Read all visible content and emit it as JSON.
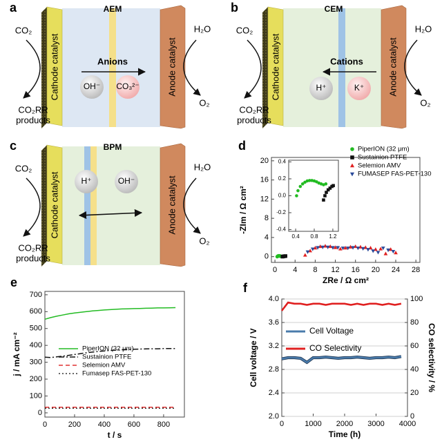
{
  "panels": [
    {
      "label": "a",
      "membrane": "AEM",
      "cathode": "Cathode catalyst",
      "anode": "Anode catalyst",
      "reactant_left": "CO₂",
      "product_left": [
        "CO₂RR",
        "products"
      ],
      "reactant_right": "H₂O",
      "product_right": "O₂",
      "transport": "Anions",
      "ions": [
        "OH⁻",
        "CO₃²⁻"
      ]
    },
    {
      "label": "b",
      "membrane": "CEM",
      "cathode": "Cathode catalyst",
      "anode": "Anode catalyst",
      "reactant_left": "CO₂",
      "product_left": [
        "CO₂RR",
        "products"
      ],
      "reactant_right": "H₂O",
      "product_right": "O₂",
      "transport": "Cations",
      "ions": [
        "H⁺",
        "K⁺"
      ]
    },
    {
      "label": "c",
      "membrane": "BPM",
      "cathode": "Cathode catalyst",
      "anode": "Anode catalyst",
      "reactant_left": "CO₂",
      "product_left": [
        "CO₂RR",
        "products"
      ],
      "reactant_right": "H₂O",
      "product_right": "O₂",
      "ions": [
        "H⁺",
        "OH⁻"
      ]
    }
  ],
  "chart_data": [
    {
      "type": "scatter",
      "panel": "d",
      "xlabel": "ZRe / Ω cm²",
      "ylabel": "-ZIm / Ω cm²",
      "xlim": [
        -0.7,
        28.8
      ],
      "ylim": [
        -1.2,
        20.7
      ],
      "xticks": [
        0,
        4,
        8,
        12,
        16,
        20,
        24,
        28
      ],
      "yticks": [
        0,
        4,
        8,
        12,
        16,
        20
      ],
      "legend": "upper right",
      "series": [
        {
          "name": "PiperION (32 μm)",
          "color": "#22bb22",
          "marker": "circle",
          "x": [
            0.45,
            0.55,
            0.65,
            0.75,
            0.85,
            0.95,
            1.05,
            1.1
          ],
          "values": [
            0,
            0.1,
            0.15,
            0.18,
            0.17,
            0.15,
            0.12,
            0.1
          ]
        },
        {
          "name": "Sustainion PTFE",
          "color": "#111111",
          "marker": "square",
          "x": [
            1.5,
            1.65,
            1.8,
            1.95,
            2.1
          ],
          "values": [
            0,
            0.05,
            0.08,
            0.1,
            0.12
          ]
        },
        {
          "name": "Selemion AMV",
          "color": "#e02020",
          "marker": "triangle-up",
          "x": [
            6,
            7,
            8,
            9,
            10,
            11,
            12,
            13,
            14,
            15,
            16,
            17,
            18,
            19,
            20,
            21,
            22,
            23,
            24
          ],
          "values": [
            0.3,
            1.2,
            1.8,
            2.1,
            2.2,
            2.1,
            1.9,
            1.6,
            1.8,
            2.0,
            2.1,
            2.0,
            1.9,
            1.8,
            1.5,
            1.6,
            0.6,
            1.5,
            0.8
          ]
        },
        {
          "name": "FUMASEP FAS-PET-130",
          "color": "#2a4a9a",
          "marker": "triangle-down",
          "x": [
            6.5,
            7.5,
            8.5,
            9.5,
            10.5,
            11.5,
            12.5,
            13.5,
            14.5,
            15.5,
            16.5,
            17.5,
            18.5,
            19.5,
            20.5,
            21.5,
            22.5,
            23.5
          ],
          "values": [
            1.0,
            1.6,
            1.9,
            2.0,
            2.0,
            1.9,
            1.9,
            1.8,
            1.8,
            1.9,
            1.8,
            1.7,
            1.5,
            1.2,
            0.9,
            1.8,
            1.4,
            1.1
          ]
        }
      ]
    },
    {
      "type": "scatter",
      "xlim": [
        0.25,
        1.32
      ],
      "ylim": [
        -0.42,
        0.42
      ],
      "xticks": [
        0.4,
        0.8,
        1.2
      ],
      "yticks": [
        -0.4,
        -0.2,
        {
          "value": 0,
          "label": "0.0"
        },
        0.2,
        0.4
      ],
      "series": [
        {
          "color": "#22bb22",
          "marker": "circle",
          "x": [
            0.42,
            0.45,
            0.5,
            0.55,
            0.6,
            0.65,
            0.7,
            0.75,
            0.8,
            0.85,
            0.9,
            0.95,
            1.0,
            1.05
          ],
          "values": [
            0.0,
            0.06,
            0.11,
            0.14,
            0.16,
            0.175,
            0.18,
            0.18,
            0.175,
            0.165,
            0.15,
            0.14,
            0.13,
            0.14
          ]
        },
        {
          "color": "#111111",
          "marker": "square",
          "x": [
            1.0,
            1.03,
            1.06,
            1.1,
            1.14,
            1.18,
            1.21
          ],
          "values": [
            -0.05,
            0.0,
            0.04,
            0.07,
            0.09,
            0.11,
            0.12
          ]
        }
      ]
    },
    {
      "type": "line",
      "panel": "e",
      "xlabel": "t / s",
      "ylabel": "j / mA cm⁻²",
      "xlim": [
        0,
        940
      ],
      "ylim": [
        -25,
        720
      ],
      "xticks": [
        0,
        200,
        400,
        600,
        800
      ],
      "yticks": [
        0,
        100,
        200,
        300,
        400,
        500,
        600,
        700
      ],
      "legend": "center right",
      "x": [
        0,
        40,
        80,
        120,
        160,
        200,
        240,
        280,
        320,
        360,
        400,
        440,
        480,
        520,
        560,
        600,
        640,
        680,
        720,
        760,
        800,
        840,
        880
      ],
      "series": [
        {
          "name": "PiperION (32 μm)",
          "color": "#22bb22",
          "linestyle": "solid",
          "values": [
            555,
            565,
            573,
            580,
            587,
            592,
            596,
            600,
            604,
            607,
            610,
            612,
            614,
            616,
            617,
            618,
            619,
            620,
            621,
            622,
            622,
            623,
            624
          ]
        },
        {
          "name": "Sustainion PTFE",
          "color": "#111111",
          "linestyle": "dashdot",
          "values": [
            330,
            328,
            332,
            336,
            341,
            346,
            351,
            356,
            360,
            364,
            367,
            370,
            372,
            374,
            376,
            377,
            378,
            379,
            380,
            380,
            381,
            381,
            381
          ]
        },
        {
          "name": "Selemion AMV",
          "color": "#e03030",
          "linestyle": "dashed",
          "values": [
            33,
            33,
            33,
            33,
            33,
            33,
            33,
            33,
            33,
            33,
            33,
            33,
            33,
            33,
            33,
            33,
            33,
            33,
            33,
            33,
            33,
            33,
            33
          ]
        },
        {
          "name": "Fumasep FAS-PET-130",
          "color": "#333333",
          "linestyle": "dotted",
          "values": [
            27,
            27,
            27,
            27,
            27,
            27,
            27,
            27,
            27,
            27,
            27,
            27,
            27,
            27,
            27,
            27,
            27,
            27,
            27,
            27,
            27,
            27,
            27
          ]
        }
      ]
    },
    {
      "type": "line",
      "panel": "f",
      "xlabel": "Time (h)",
      "ylabel": "Cell voltage / V",
      "y2label": "CO selectivity / %",
      "xlim": [
        0,
        4000
      ],
      "ylim": [
        2.0,
        4.0
      ],
      "y2lim": [
        0,
        100
      ],
      "xticks": [
        0,
        1000,
        2000,
        3000,
        4000
      ],
      "yticks": [
        {
          "value": 2,
          "label": "2.0"
        },
        2.4,
        2.8,
        3.2,
        3.6,
        {
          "value": 4,
          "label": "4.0"
        }
      ],
      "y2ticks": [
        0,
        20,
        40,
        60,
        80,
        100
      ],
      "grid": true,
      "legend": "center left",
      "x": [
        0,
        200,
        400,
        600,
        800,
        1000,
        1200,
        1400,
        1600,
        1800,
        2000,
        2200,
        2400,
        2600,
        2800,
        3000,
        3200,
        3400,
        3600,
        3800
      ],
      "series": [
        {
          "name": "Cell Voltage",
          "color": "#4a7bab",
          "linestyle": "solid",
          "values": [
            2.98,
            3.0,
            3.0,
            2.99,
            2.92,
            3.0,
            3.0,
            3.01,
            3.0,
            2.99,
            3.0,
            3.0,
            3.01,
            3.0,
            2.99,
            3.0,
            3.0,
            3.01,
            3.0,
            3.02
          ]
        },
        {
          "name": "CO Selectivity",
          "color": "#e02020",
          "linestyle": "solid",
          "axis": "y2",
          "values": [
            90,
            97,
            96,
            96,
            95,
            96,
            96,
            95,
            96,
            96,
            96,
            95,
            96,
            95,
            96,
            96,
            95,
            96,
            95,
            96
          ]
        }
      ]
    }
  ]
}
